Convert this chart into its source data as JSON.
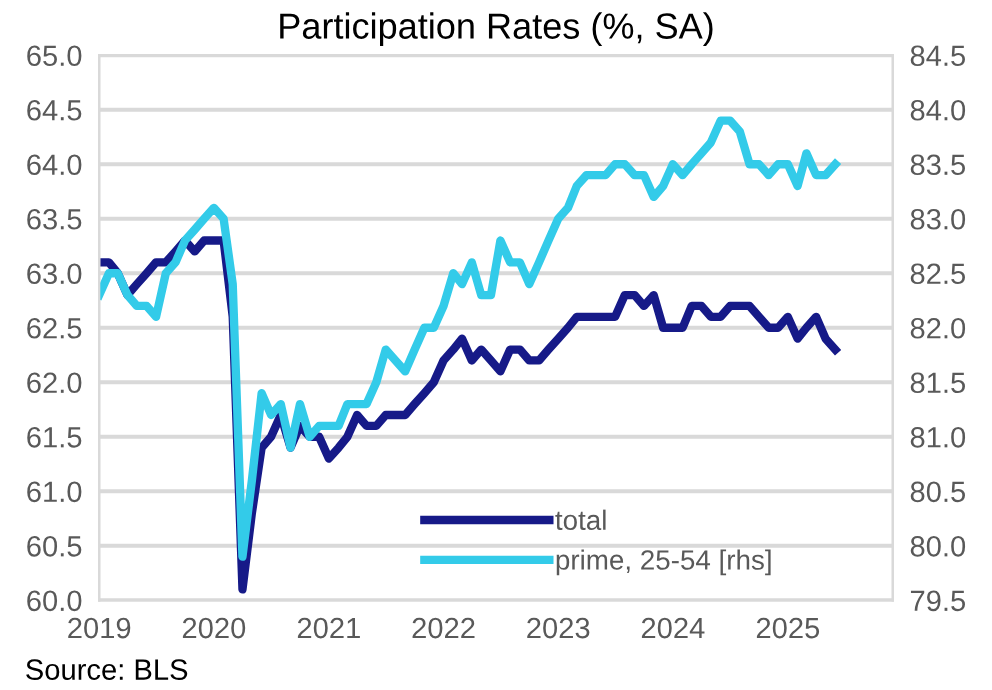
{
  "chart_data": {
    "type": "line",
    "title": "Participation Rates (%, SA)",
    "x": [
      "2019-01",
      "2019-02",
      "2019-03",
      "2019-04",
      "2019-05",
      "2019-06",
      "2019-07",
      "2019-08",
      "2019-09",
      "2019-10",
      "2019-11",
      "2019-12",
      "2020-01",
      "2020-02",
      "2020-03",
      "2020-04",
      "2020-05",
      "2020-06",
      "2020-07",
      "2020-08",
      "2020-09",
      "2020-10",
      "2020-11",
      "2020-12",
      "2021-01",
      "2021-02",
      "2021-03",
      "2021-04",
      "2021-05",
      "2021-06",
      "2021-07",
      "2021-08",
      "2021-09",
      "2021-10",
      "2021-11",
      "2021-12",
      "2022-01",
      "2022-02",
      "2022-03",
      "2022-04",
      "2022-05",
      "2022-06",
      "2022-07",
      "2022-08",
      "2022-09",
      "2022-10",
      "2022-11",
      "2022-12",
      "2023-01",
      "2023-02",
      "2023-03",
      "2023-04",
      "2023-05",
      "2023-06",
      "2023-07",
      "2023-08",
      "2023-09",
      "2023-10",
      "2023-11",
      "2023-12",
      "2024-01",
      "2024-02",
      "2024-03",
      "2024-04",
      "2024-05",
      "2024-06",
      "2024-07",
      "2024-08",
      "2024-09",
      "2024-10",
      "2024-11",
      "2024-12",
      "2025-01",
      "2025-02",
      "2025-03",
      "2025-04",
      "2025-05",
      "2025-06"
    ],
    "series": [
      {
        "name": "total",
        "color": "#161a88",
        "values": [
          63.1,
          63.1,
          63.0,
          62.8,
          62.9,
          63.0,
          63.1,
          63.1,
          63.2,
          63.3,
          63.2,
          63.3,
          63.3,
          63.3,
          62.6,
          60.1,
          60.8,
          61.4,
          61.5,
          61.7,
          61.4,
          61.6,
          61.5,
          61.5,
          61.3,
          61.4,
          61.5,
          61.7,
          61.6,
          61.6,
          61.7,
          61.7,
          61.7,
          61.8,
          61.9,
          62.0,
          62.2,
          62.3,
          62.4,
          62.2,
          62.3,
          62.2,
          62.1,
          62.3,
          62.3,
          62.2,
          62.2,
          62.3,
          62.4,
          62.5,
          62.6,
          62.6,
          62.6,
          62.6,
          62.6,
          62.8,
          62.8,
          62.7,
          62.8,
          62.5,
          62.5,
          62.5,
          62.7,
          62.7,
          62.6,
          62.6,
          62.7,
          62.7,
          62.7,
          62.6,
          62.5,
          62.5,
          62.6,
          62.4,
          62.5,
          62.6,
          62.4,
          62.3
        ]
      },
      {
        "name": "prime, 25-54 [rhs]",
        "color": "#33cbe9",
        "axis": "y2",
        "values": [
          82.3,
          82.5,
          82.5,
          82.3,
          82.2,
          82.2,
          82.1,
          82.5,
          82.6,
          82.8,
          82.9,
          83.0,
          83.1,
          83.0,
          82.4,
          79.9,
          80.6,
          81.4,
          81.2,
          81.3,
          80.9,
          81.3,
          81.0,
          81.1,
          81.1,
          81.1,
          81.3,
          81.3,
          81.3,
          81.5,
          81.8,
          81.7,
          81.6,
          81.8,
          82.0,
          82.0,
          82.2,
          82.5,
          82.4,
          82.6,
          82.3,
          82.3,
          82.8,
          82.6,
          82.6,
          82.4,
          82.6,
          82.8,
          83.0,
          83.1,
          83.3,
          83.4,
          83.4,
          83.4,
          83.5,
          83.5,
          83.4,
          83.4,
          83.2,
          83.3,
          83.5,
          83.4,
          83.5,
          83.6,
          83.7,
          83.9,
          83.9,
          83.8,
          83.5,
          83.5,
          83.4,
          83.5,
          83.5,
          83.3,
          83.6,
          83.4,
          83.4,
          83.5
        ]
      }
    ],
    "xlim": [
      "2019-01",
      "2025-12"
    ],
    "xticks": [
      {
        "value": "2019-01",
        "label": "2019"
      },
      {
        "value": "2020-01",
        "label": "2020"
      },
      {
        "value": "2021-01",
        "label": "2021"
      },
      {
        "value": "2022-01",
        "label": "2022"
      },
      {
        "value": "2023-01",
        "label": "2023"
      },
      {
        "value": "2024-01",
        "label": "2024"
      },
      {
        "value": "2025-01",
        "label": "2025"
      }
    ],
    "ylim": [
      60.0,
      65.0
    ],
    "yticks": [
      {
        "value": 60,
        "label": "60.0"
      },
      60.5,
      {
        "value": 61,
        "label": "61.0"
      },
      61.5,
      {
        "value": 62,
        "label": "62.0"
      },
      62.5,
      {
        "value": 63,
        "label": "63.0"
      },
      63.5,
      {
        "value": 64,
        "label": "64.0"
      },
      64.5,
      {
        "value": 65,
        "label": "65.0"
      }
    ],
    "y2lim": [
      79.5,
      84.5
    ],
    "y2ticks": [
      79.5,
      {
        "value": 80,
        "label": "80.0"
      },
      80.5,
      {
        "value": 81,
        "label": "81.0"
      },
      81.5,
      {
        "value": 82,
        "label": "82.0"
      },
      82.5,
      {
        "value": 83,
        "label": "83.0"
      },
      83.5,
      {
        "value": 84,
        "label": "84.0"
      },
      84.5
    ],
    "grid": "y",
    "legend": "bottom right",
    "marker": "none",
    "line_style": "solid",
    "annotations": [
      "Source: BLS"
    ]
  }
}
